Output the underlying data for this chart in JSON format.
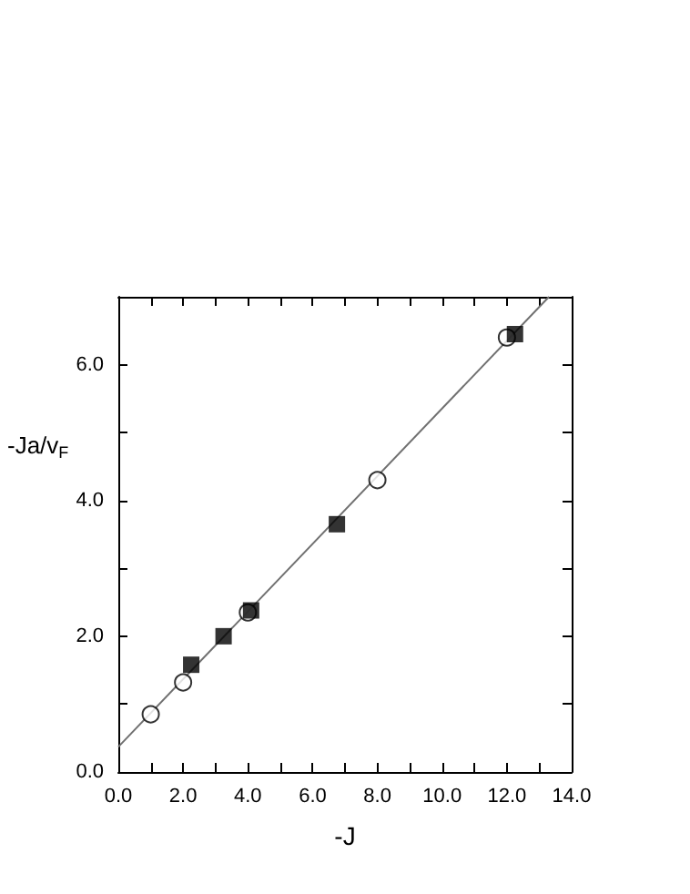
{
  "chart_data": {
    "type": "scatter",
    "xlabel": "-J",
    "ylabel": "-Ja/v$_{F}$",
    "series": [
      {
        "type": "line",
        "color": "#707070",
        "marker": "none",
        "x": [
          0,
          13.3
        ],
        "values": [
          0.37,
          7.0
        ]
      },
      {
        "color": "#000000",
        "marker": "circle",
        "x": [
          1,
          2,
          4,
          8,
          12
        ],
        "values": [
          0.85,
          1.32,
          2.35,
          4.3,
          6.4
        ]
      },
      {
        "color": "#000000",
        "marker": "square",
        "x": [
          2.25,
          3.25,
          4.1,
          6.75,
          12.25
        ],
        "values": [
          1.58,
          2.0,
          2.38,
          3.65,
          6.45
        ]
      }
    ],
    "xlim": [
      0,
      14
    ],
    "ylim": [
      0,
      7
    ],
    "xticks": [
      {
        "value": 0,
        "label": "0.0"
      },
      {
        "value": 1,
        "label": null
      },
      {
        "value": 2,
        "label": "2.0"
      },
      {
        "value": 3,
        "label": null
      },
      {
        "value": 4,
        "label": "4.0"
      },
      {
        "value": 5,
        "label": null
      },
      {
        "value": 6,
        "label": "6.0"
      },
      {
        "value": 7,
        "label": null
      },
      {
        "value": 8,
        "label": "8.0"
      },
      {
        "value": 9,
        "label": null
      },
      {
        "value": 10,
        "label": "10.0"
      },
      {
        "value": 11,
        "label": null
      },
      {
        "value": 12,
        "label": "12.0"
      },
      {
        "value": 13,
        "label": null
      },
      {
        "value": 14,
        "label": "14.0"
      }
    ],
    "yticks": [
      {
        "value": 0,
        "label": "0.0"
      },
      {
        "value": 1,
        "label": null
      },
      {
        "value": 2,
        "label": "2.0"
      },
      {
        "value": 3,
        "label": null
      },
      {
        "value": 4,
        "label": "4.0"
      },
      {
        "value": 5,
        "label": null
      },
      {
        "value": 6,
        "label": "6.0"
      },
      {
        "value": 7,
        "label": null
      }
    ],
    "grid": false
  }
}
